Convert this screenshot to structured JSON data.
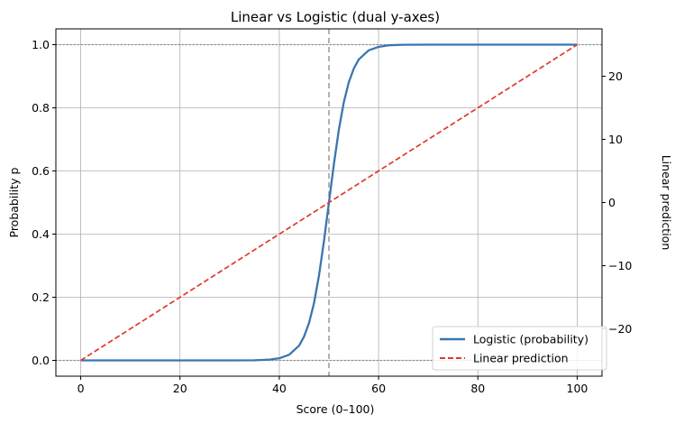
{
  "chart_data": {
    "type": "line",
    "title": "Linear vs Logistic (dual y-axes)",
    "xlabel": "Score (0–100)",
    "ylabel_left": "Probability p",
    "ylabel_right": "Linear prediction",
    "xlim": [
      -5,
      105
    ],
    "ylim_left": [
      -0.05,
      1.05
    ],
    "ylim_right": [
      -27.5,
      27.5
    ],
    "x_ticks": [
      0,
      20,
      40,
      60,
      80,
      100
    ],
    "y_ticks_left": [
      "0.0",
      "0.2",
      "0.4",
      "0.6",
      "0.8",
      "1.0"
    ],
    "y_ticks_right": [
      "−20",
      "−10",
      "0",
      "10",
      "20"
    ],
    "grid": true,
    "legend_position": "lower-right",
    "reference_lines": [
      {
        "orientation": "vertical",
        "axis": "x",
        "value": 50,
        "style": "dashed",
        "color": "#999999"
      },
      {
        "orientation": "horizontal",
        "axis": "left",
        "value": 0,
        "style": "dotted",
        "color": "#808080"
      },
      {
        "orientation": "horizontal",
        "axis": "left",
        "value": 1,
        "style": "dotted",
        "color": "#808080"
      }
    ],
    "series": [
      {
        "name": "Logistic (probability)",
        "axis": "left",
        "color": "#3a76af",
        "style": "solid",
        "x": [
          0,
          10,
          20,
          30,
          35,
          38,
          40,
          42,
          44,
          45,
          46,
          47,
          48,
          49,
          50,
          51,
          52,
          53,
          54,
          55,
          56,
          58,
          60,
          62,
          65,
          70,
          80,
          90,
          100
        ],
        "y": [
          0.0,
          0.0,
          0.0,
          0.0,
          0.0003,
          0.0025,
          0.0067,
          0.018,
          0.047,
          0.076,
          0.119,
          0.182,
          0.269,
          0.378,
          0.5,
          0.622,
          0.731,
          0.818,
          0.881,
          0.924,
          0.953,
          0.982,
          0.993,
          0.998,
          0.9997,
          1.0,
          1.0,
          1.0,
          1.0
        ]
      },
      {
        "name": "Linear prediction",
        "axis": "right",
        "color": "#e0392b",
        "style": "dashed",
        "x": [
          0,
          100
        ],
        "y": [
          -25,
          25
        ]
      }
    ]
  }
}
